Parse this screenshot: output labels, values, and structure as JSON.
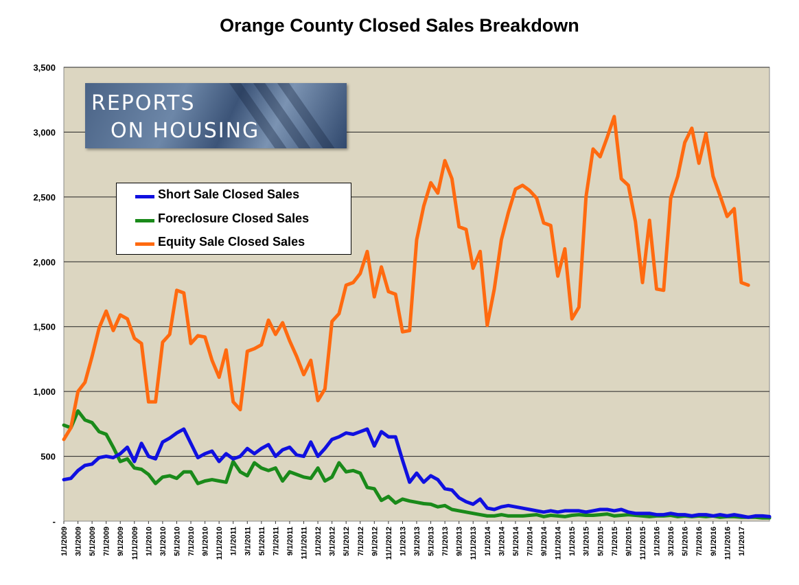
{
  "chart_data": {
    "type": "line",
    "title": "Orange County Closed Sales Breakdown",
    "xlabel": "",
    "ylabel": "",
    "ylim": [
      0,
      3500
    ],
    "grid": true,
    "legend_placement": "upper-left",
    "y_ticks": [
      "-",
      "500",
      "1,000",
      "1,500",
      "2,000",
      "2,500",
      "3,000",
      "3,500"
    ],
    "x_tick_labels": [
      "1/1/2009",
      "3/1/2009",
      "5/1/2009",
      "7/1/2009",
      "9/1/2009",
      "11/1/2009",
      "1/1/2010",
      "3/1/2010",
      "5/1/2010",
      "7/1/2010",
      "9/1/2010",
      "11/1/2010",
      "1/1/2011",
      "3/1/2011",
      "5/1/2011",
      "7/1/2011",
      "9/1/2011",
      "11/1/2011",
      "1/1/2012",
      "3/1/2012",
      "5/1/2012",
      "7/1/2012",
      "9/1/2012",
      "11/1/2012",
      "1/1/2013",
      "3/1/2013",
      "5/1/2013",
      "7/1/2013",
      "9/1/2013",
      "11/1/2013",
      "1/1/2014",
      "3/1/2014",
      "5/1/2014",
      "7/1/2014",
      "9/1/2014",
      "11/1/2014",
      "1/1/2015",
      "3/1/2015",
      "5/1/2015",
      "7/1/2015",
      "9/1/2015",
      "11/1/2015",
      "1/1/2016",
      "3/1/2016",
      "5/1/2016",
      "7/1/2016",
      "9/1/2016",
      "11/1/2016",
      "1/1/2017"
    ],
    "x_start": "1/1/2009",
    "x_step": "1 month",
    "series": [
      {
        "name": "Short Sale Closed Sales",
        "color": "#1010e0",
        "values": [
          320,
          330,
          390,
          430,
          440,
          490,
          500,
          490,
          520,
          570,
          460,
          600,
          500,
          480,
          610,
          640,
          680,
          710,
          600,
          490,
          520,
          540,
          460,
          520,
          480,
          500,
          560,
          520,
          560,
          590,
          500,
          550,
          570,
          510,
          500,
          610,
          500,
          560,
          630,
          650,
          680,
          670,
          690,
          710,
          580,
          690,
          650,
          650,
          470,
          300,
          370,
          300,
          350,
          320,
          250,
          240,
          180,
          150,
          130,
          170,
          100,
          90,
          110,
          120,
          110,
          100,
          90,
          80,
          70,
          80,
          70,
          80,
          80,
          80,
          70,
          80,
          90,
          90,
          80,
          90,
          70,
          60,
          60,
          60,
          50,
          50,
          60,
          50,
          50,
          40,
          50,
          50,
          40,
          50,
          40,
          50,
          40,
          30,
          40,
          40,
          35
        ]
      },
      {
        "name": "Foreclosure Closed Sales",
        "color": "#1a8a1a",
        "values": [
          740,
          720,
          850,
          780,
          760,
          690,
          670,
          570,
          460,
          480,
          410,
          400,
          360,
          290,
          340,
          350,
          330,
          380,
          380,
          290,
          310,
          320,
          310,
          300,
          460,
          380,
          350,
          450,
          410,
          390,
          410,
          310,
          380,
          360,
          340,
          330,
          410,
          310,
          340,
          450,
          380,
          390,
          370,
          260,
          250,
          160,
          190,
          140,
          170,
          155,
          145,
          135,
          130,
          110,
          120,
          90,
          80,
          70,
          60,
          50,
          40,
          40,
          50,
          40,
          40,
          40,
          45,
          50,
          35,
          45,
          40,
          35,
          45,
          50,
          45,
          45,
          50,
          55,
          40,
          45,
          50,
          45,
          40,
          35,
          40,
          40,
          45,
          35,
          40,
          35,
          40,
          35,
          40,
          30,
          35,
          35,
          30,
          30,
          30,
          25,
          25
        ]
      },
      {
        "name": "Equity Sale Closed Sales",
        "color": "#ff6a10",
        "values": [
          630,
          720,
          1000,
          1070,
          1270,
          1490,
          1620,
          1470,
          1590,
          1560,
          1410,
          1370,
          920,
          920,
          1380,
          1440,
          1780,
          1760,
          1370,
          1430,
          1420,
          1240,
          1110,
          1320,
          920,
          860,
          1310,
          1330,
          1360,
          1550,
          1440,
          1530,
          1390,
          1270,
          1130,
          1240,
          930,
          1020,
          1540,
          1600,
          1820,
          1840,
          1910,
          2080,
          1730,
          1960,
          1770,
          1750,
          1460,
          1470,
          2170,
          2430,
          2610,
          2530,
          2780,
          2640,
          2270,
          2250,
          1950,
          2080,
          1510,
          1790,
          2170,
          2380,
          2560,
          2590,
          2550,
          2490,
          2300,
          2280,
          1890,
          2100,
          1560,
          1650,
          2500,
          2870,
          2810,
          2960,
          3120,
          2640,
          2590,
          2310,
          1840,
          2320,
          1790,
          1780,
          2490,
          2660,
          2920,
          3030,
          2760,
          2990,
          2660,
          2510,
          2350,
          2410,
          1840,
          1820
        ]
      }
    ]
  },
  "logo": {
    "line1": "REPORTS",
    "line2": "ON HOUSING"
  }
}
